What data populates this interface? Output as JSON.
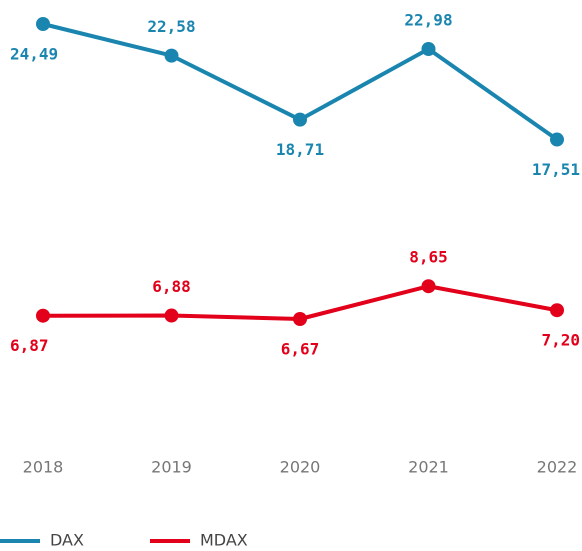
{
  "chart_data": {
    "type": "line",
    "categories": [
      "2018",
      "2019",
      "2020",
      "2021",
      "2022"
    ],
    "series": [
      {
        "name": "DAX",
        "color": "#1a86b0",
        "values": [
          24.49,
          22.58,
          18.71,
          22.98,
          17.51
        ],
        "value_labels": [
          "24,49",
          "22,58",
          "18,71",
          "22,98",
          "17,51"
        ]
      },
      {
        "name": "MDAX",
        "color": "#e2001a",
        "values": [
          6.87,
          6.88,
          6.67,
          8.65,
          7.2
        ],
        "value_labels": [
          "6,87",
          "6,88",
          "6,67",
          "8,65",
          "7,20"
        ]
      }
    ],
    "legend": "bottom-left"
  }
}
